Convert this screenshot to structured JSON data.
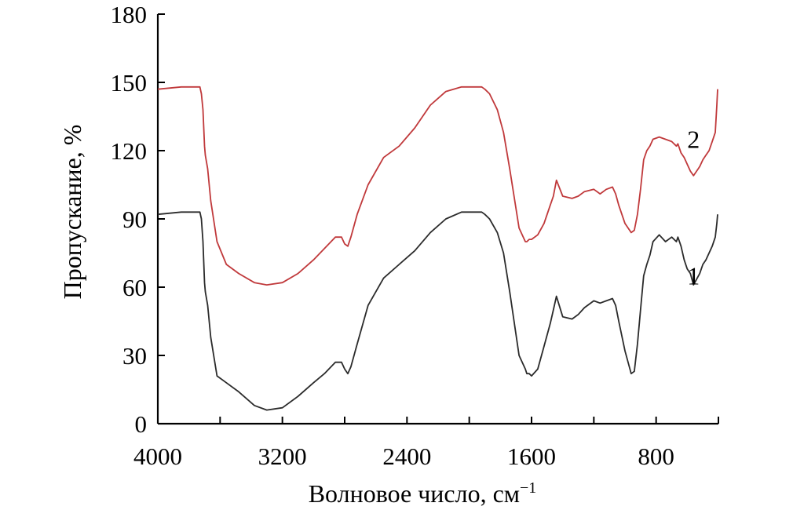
{
  "chart_data": {
    "type": "line",
    "xlabel": "Волновое число, см",
    "xlabel_sup": "−1",
    "ylabel": "Пропускание, %",
    "xlim": [
      4000,
      400
    ],
    "ylim": [
      0,
      180
    ],
    "x_ticks": [
      4000,
      3200,
      2400,
      1600,
      800
    ],
    "x_tick_labels": [
      "4000",
      "3200",
      "2400",
      "1600",
      "800"
    ],
    "x_minor_ticks": [
      3600,
      2800,
      2000,
      1200,
      400
    ],
    "y_ticks": [
      0,
      30,
      60,
      90,
      120,
      150,
      180
    ],
    "y_tick_labels": [
      "0",
      "30",
      "60",
      "90",
      "120",
      "150",
      "180"
    ],
    "grid": false,
    "colors": {
      "series1": "#2b2b2b",
      "series2": "#c0393b",
      "axis": "#000000"
    },
    "series": [
      {
        "name": "1",
        "label_x": 560,
        "label_y": 65,
        "x": [
          4000,
          3850,
          3730,
          3720,
          3710,
          3700,
          3695,
          3680,
          3660,
          3620,
          3560,
          3480,
          3380,
          3300,
          3200,
          3100,
          3000,
          2930,
          2860,
          2820,
          2800,
          2780,
          2760,
          2720,
          2650,
          2550,
          2450,
          2350,
          2250,
          2150,
          2050,
          1990,
          1960,
          1950,
          1940,
          1920,
          1900,
          1870,
          1820,
          1780,
          1740,
          1680,
          1640,
          1630,
          1615,
          1600,
          1560,
          1520,
          1480,
          1460,
          1440,
          1400,
          1340,
          1300,
          1260,
          1200,
          1160,
          1120,
          1080,
          1060,
          1040,
          1000,
          960,
          940,
          920,
          900,
          880,
          860,
          840,
          820,
          780,
          740,
          700,
          670,
          660,
          640,
          620,
          600,
          580,
          560,
          520,
          500,
          480,
          460,
          440,
          420,
          410,
          405
        ],
        "y": [
          92,
          93,
          93,
          90,
          80,
          62,
          58,
          52,
          38,
          21,
          18,
          14,
          8,
          6,
          7,
          12,
          18,
          22,
          27,
          27,
          24,
          22,
          25,
          35,
          52,
          64,
          70,
          76,
          84,
          90,
          93,
          93,
          93,
          93,
          93,
          93,
          92,
          90,
          84,
          75,
          58,
          30,
          24,
          22,
          22,
          21,
          24,
          34,
          44,
          50,
          56,
          47,
          46,
          48,
          51,
          54,
          53,
          54,
          55,
          52,
          45,
          32,
          22,
          23,
          35,
          50,
          65,
          70,
          74,
          80,
          83,
          80,
          82,
          80,
          82,
          78,
          72,
          68,
          66,
          61,
          66,
          70,
          72,
          75,
          78,
          82,
          88,
          92
        ]
      },
      {
        "name": "2",
        "label_x": 560,
        "label_y": 125,
        "x": [
          4000,
          3850,
          3730,
          3720,
          3710,
          3700,
          3695,
          3680,
          3660,
          3620,
          3560,
          3480,
          3380,
          3300,
          3200,
          3100,
          3000,
          2930,
          2860,
          2820,
          2800,
          2780,
          2760,
          2720,
          2650,
          2550,
          2450,
          2350,
          2250,
          2150,
          2050,
          1990,
          1960,
          1950,
          1940,
          1920,
          1900,
          1870,
          1820,
          1780,
          1740,
          1680,
          1640,
          1630,
          1615,
          1600,
          1560,
          1520,
          1480,
          1460,
          1440,
          1400,
          1340,
          1300,
          1260,
          1200,
          1160,
          1120,
          1080,
          1060,
          1040,
          1000,
          960,
          940,
          920,
          900,
          880,
          860,
          840,
          820,
          780,
          740,
          700,
          670,
          660,
          640,
          620,
          600,
          580,
          560,
          520,
          500,
          480,
          460,
          440,
          420,
          410,
          405
        ],
        "y": [
          147,
          148,
          148,
          145,
          138,
          122,
          118,
          112,
          98,
          80,
          70,
          66,
          62,
          61,
          62,
          66,
          72,
          77,
          82,
          82,
          79,
          78,
          82,
          92,
          105,
          117,
          122,
          130,
          140,
          146,
          148,
          148,
          148,
          148,
          148,
          148,
          147,
          145,
          138,
          128,
          112,
          86,
          80,
          80,
          81,
          81,
          83,
          88,
          96,
          100,
          107,
          100,
          99,
          100,
          102,
          103,
          101,
          103,
          104,
          101,
          96,
          88,
          84,
          85,
          92,
          103,
          116,
          120,
          122,
          125,
          126,
          125,
          124,
          122,
          123,
          119,
          117,
          114,
          111,
          109,
          113,
          116,
          118,
          120,
          124,
          128,
          140,
          147
        ]
      }
    ]
  }
}
